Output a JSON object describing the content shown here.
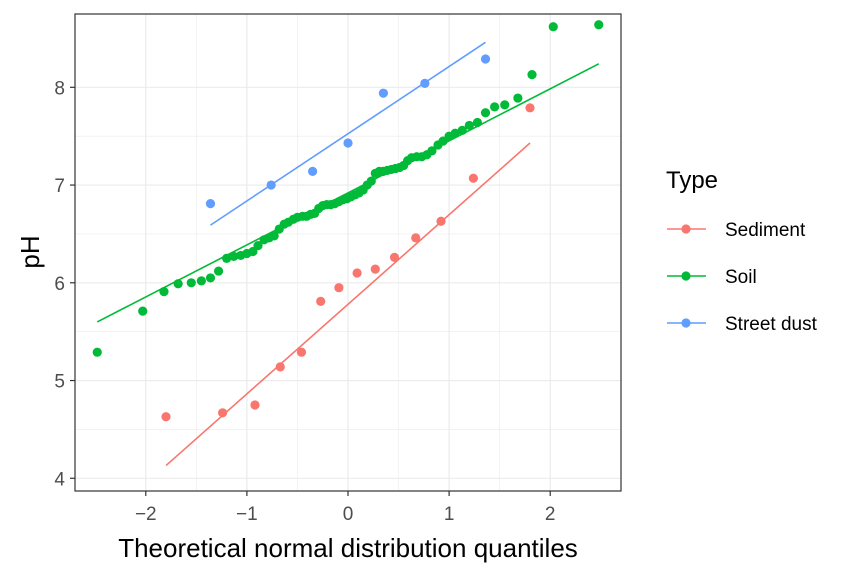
{
  "chart_data": {
    "type": "scatter",
    "xlabel": "Theoretical normal distribution quantiles",
    "ylabel": "pH",
    "xlim": [
      -2.7,
      2.7
    ],
    "ylim": [
      3.87,
      8.75
    ],
    "x_ticks": [
      -2,
      -1,
      0,
      1,
      2
    ],
    "y_ticks": [
      4,
      5,
      6,
      7,
      8
    ],
    "grid": true,
    "legend": {
      "title": "Type",
      "position": "right"
    },
    "series": [
      {
        "name": "Sediment",
        "color": "#F8766D",
        "points": [
          [
            -1.8,
            4.63
          ],
          [
            -1.24,
            4.67
          ],
          [
            -0.92,
            4.75
          ],
          [
            -0.67,
            5.14
          ],
          [
            -0.46,
            5.29
          ],
          [
            -0.27,
            5.81
          ],
          [
            -0.09,
            5.95
          ],
          [
            0.09,
            6.1
          ],
          [
            0.27,
            6.14
          ],
          [
            0.46,
            6.26
          ],
          [
            0.67,
            6.46
          ],
          [
            0.92,
            6.63
          ],
          [
            1.24,
            7.07
          ],
          [
            1.8,
            7.79
          ]
        ],
        "line": [
          [
            -1.8,
            4.13
          ],
          [
            1.8,
            7.43
          ]
        ]
      },
      {
        "name": "Soil",
        "color": "#00BA38",
        "points": [
          [
            -2.48,
            5.29
          ],
          [
            -2.03,
            5.71
          ],
          [
            -1.82,
            5.91
          ],
          [
            -1.68,
            5.99
          ],
          [
            -1.55,
            6.0
          ],
          [
            -1.45,
            6.02
          ],
          [
            -1.36,
            6.05
          ],
          [
            -1.28,
            6.12
          ],
          [
            -1.2,
            6.25
          ],
          [
            -1.13,
            6.27
          ],
          [
            -1.06,
            6.28
          ],
          [
            -1.0,
            6.3
          ],
          [
            -0.94,
            6.32
          ],
          [
            -0.89,
            6.38
          ],
          [
            -0.83,
            6.44
          ],
          [
            -0.78,
            6.46
          ],
          [
            -0.73,
            6.48
          ],
          [
            -0.68,
            6.55
          ],
          [
            -0.63,
            6.6
          ],
          [
            -0.59,
            6.62
          ],
          [
            -0.54,
            6.65
          ],
          [
            -0.5,
            6.67
          ],
          [
            -0.45,
            6.68
          ],
          [
            -0.41,
            6.68
          ],
          [
            -0.37,
            6.7
          ],
          [
            -0.33,
            6.71
          ],
          [
            -0.29,
            6.76
          ],
          [
            -0.25,
            6.79
          ],
          [
            -0.21,
            6.8
          ],
          [
            -0.17,
            6.8
          ],
          [
            -0.13,
            6.81
          ],
          [
            -0.09,
            6.83
          ],
          [
            -0.05,
            6.85
          ],
          [
            -0.01,
            6.86
          ],
          [
            0.03,
            6.88
          ],
          [
            0.07,
            6.9
          ],
          [
            0.11,
            6.92
          ],
          [
            0.15,
            6.95
          ],
          [
            0.19,
            7.0
          ],
          [
            0.23,
            7.04
          ],
          [
            0.27,
            7.12
          ],
          [
            0.31,
            7.14
          ],
          [
            0.35,
            7.14
          ],
          [
            0.39,
            7.15
          ],
          [
            0.43,
            7.16
          ],
          [
            0.47,
            7.17
          ],
          [
            0.51,
            7.18
          ],
          [
            0.55,
            7.2
          ],
          [
            0.59,
            7.25
          ],
          [
            0.63,
            7.28
          ],
          [
            0.68,
            7.29
          ],
          [
            0.73,
            7.29
          ],
          [
            0.78,
            7.31
          ],
          [
            0.83,
            7.35
          ],
          [
            0.89,
            7.41
          ],
          [
            0.94,
            7.45
          ],
          [
            1.0,
            7.5
          ],
          [
            1.06,
            7.53
          ],
          [
            1.13,
            7.56
          ],
          [
            1.2,
            7.61
          ],
          [
            1.28,
            7.64
          ],
          [
            1.36,
            7.74
          ],
          [
            1.45,
            7.8
          ],
          [
            1.55,
            7.82
          ],
          [
            1.68,
            7.89
          ],
          [
            1.82,
            8.13
          ],
          [
            2.03,
            8.62
          ],
          [
            2.48,
            8.64
          ]
        ],
        "line": [
          [
            -2.48,
            5.6
          ],
          [
            2.48,
            8.24
          ]
        ]
      },
      {
        "name": "Street dust",
        "color": "#619CFF",
        "points": [
          [
            -1.36,
            6.81
          ],
          [
            -0.76,
            7.0
          ],
          [
            -0.35,
            7.14
          ],
          [
            0.0,
            7.43
          ],
          [
            0.35,
            7.94
          ],
          [
            0.76,
            8.04
          ],
          [
            1.36,
            8.29
          ]
        ],
        "line": [
          [
            -1.36,
            6.59
          ],
          [
            1.36,
            8.46
          ]
        ]
      }
    ]
  }
}
